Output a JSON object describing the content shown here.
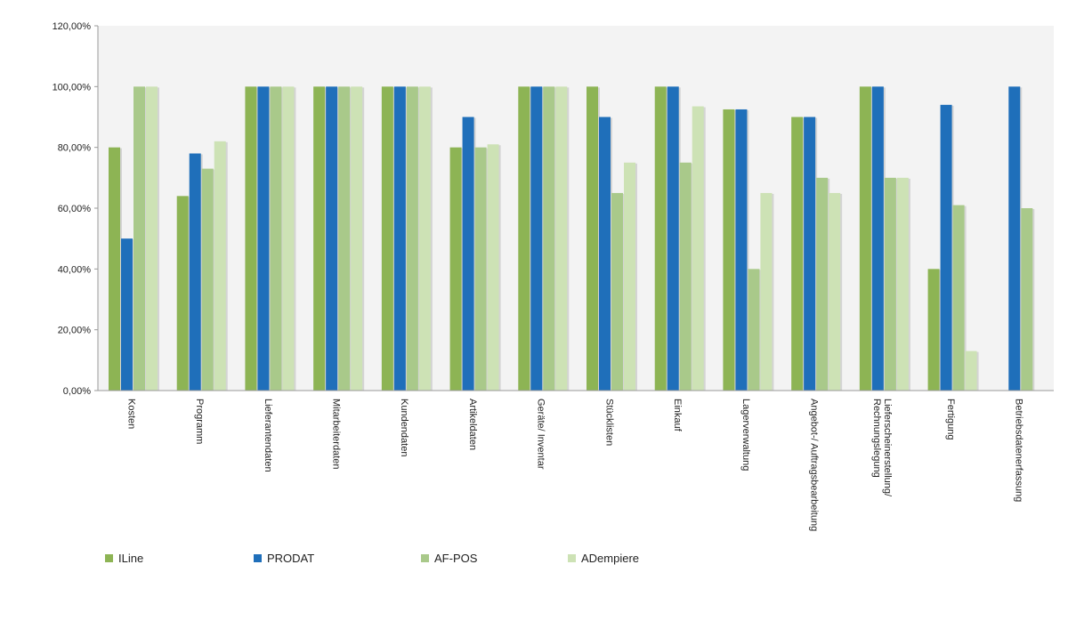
{
  "chart_data": {
    "type": "bar",
    "categories": [
      "Kosten",
      "Programm",
      "Lieferantendaten",
      "Mitarbeiterdaten",
      "Kundendaten",
      "Artikeldaten",
      "Geräte/ Inventar",
      "Stücklisten",
      "Einkauf",
      "Lagerverwaltung",
      "Angebot-/ Auftragsbearbeitung",
      "Lieferscheinerstellung/ Rechnungslegung",
      "Fertigung",
      "Betriebsdatenerfassung"
    ],
    "category_lines": [
      [
        "Kosten"
      ],
      [
        "Programm"
      ],
      [
        "Lieferantendaten"
      ],
      [
        "Mitarbeiterdaten"
      ],
      [
        "Kundendaten"
      ],
      [
        "Artikeldaten"
      ],
      [
        "Geräte/ Inventar"
      ],
      [
        "Stücklisten"
      ],
      [
        "Einkauf"
      ],
      [
        "Lagerverwaltung"
      ],
      [
        "Angebot-/ Auftragsbearbeitung"
      ],
      [
        "Lieferscheinerstellung/",
        "Rechnungslegung"
      ],
      [
        "Fertigung"
      ],
      [
        "Betriebsdatenerfassung"
      ]
    ],
    "series": [
      {
        "name": "ILine",
        "color": "#8db454",
        "values": [
          80,
          64,
          100,
          100,
          100,
          80,
          100,
          100,
          100,
          92.5,
          90,
          100,
          40,
          null
        ]
      },
      {
        "name": "PRODAT",
        "color": "#1f6fba",
        "values": [
          50,
          78,
          100,
          100,
          100,
          90,
          100,
          90,
          100,
          92.5,
          90,
          100,
          94,
          100
        ]
      },
      {
        "name": "AF-POS",
        "color": "#a9c98a",
        "values": [
          100,
          73,
          100,
          100,
          100,
          80,
          100,
          65,
          75,
          40,
          70,
          70,
          61,
          60
        ]
      },
      {
        "name": "ADempiere",
        "color": "#cde2b5",
        "values": [
          100,
          82,
          100,
          100,
          100,
          81,
          100,
          75,
          93.5,
          65,
          65,
          70,
          13,
          null
        ]
      }
    ],
    "yticks": [
      "0,00%",
      "20,00%",
      "40,00%",
      "60,00%",
      "80,00%",
      "100,00%",
      "120,00%"
    ],
    "ylim": [
      0,
      120
    ],
    "grid": false,
    "legend_position": "bottom"
  }
}
